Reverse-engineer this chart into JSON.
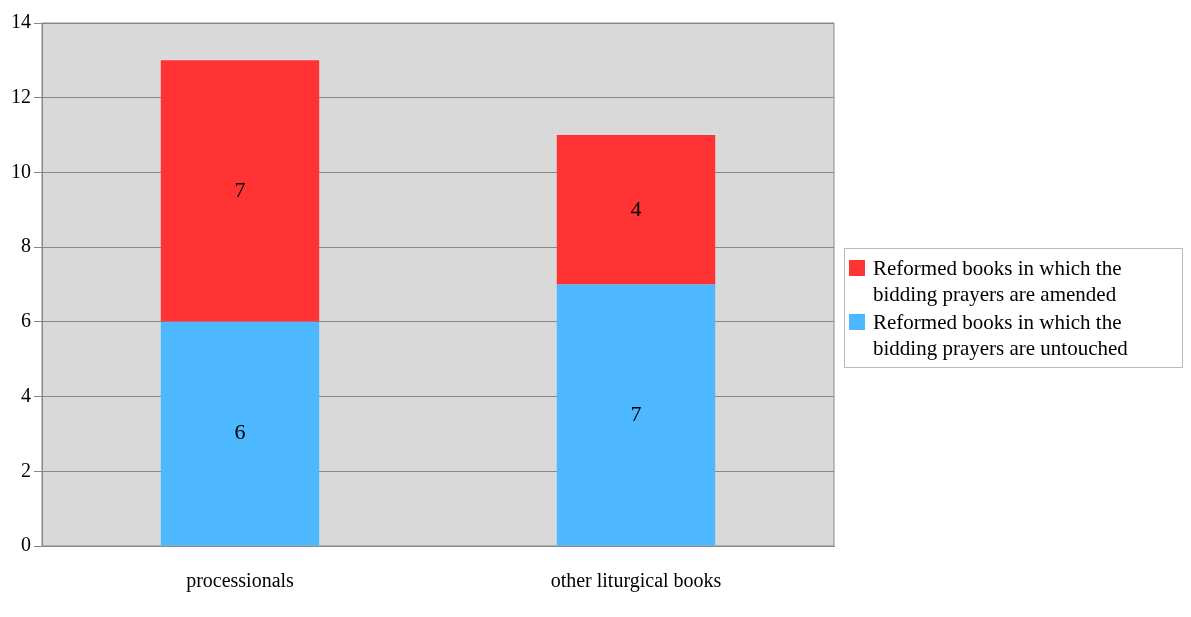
{
  "chart_data": {
    "type": "bar",
    "stacked": true,
    "categories": [
      "processionals",
      "other liturgical books"
    ],
    "series": [
      {
        "name": "Reformed books in which the bidding prayers are untouched",
        "color": "#4db8ff",
        "values": [
          6,
          7
        ]
      },
      {
        "name": "Reformed books in which the bidding prayers are amended",
        "color": "#ff3333",
        "values": [
          7,
          4
        ]
      }
    ],
    "ylim": [
      0,
      14
    ],
    "yticks": [
      0,
      2,
      4,
      6,
      8,
      10,
      12,
      14
    ],
    "grid": "y",
    "legend": "right",
    "data_labels": true
  }
}
